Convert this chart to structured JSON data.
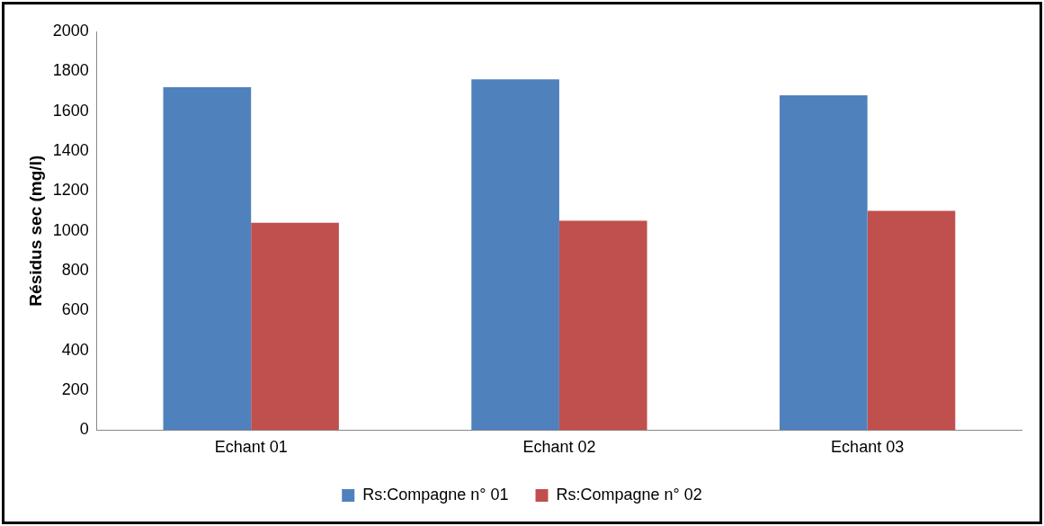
{
  "chart_data": {
    "type": "bar",
    "ylabel": "Résidus sec (mg/l)",
    "categories": [
      "Echant 01",
      "Echant 02",
      "Echant 03"
    ],
    "series": [
      {
        "name": "Rs:Compagne n° 01",
        "color": "#4f81bd",
        "values": [
          1720,
          1760,
          1680
        ]
      },
      {
        "name": "Rs:Compagne n° 02",
        "color": "#c0504d",
        "values": [
          1040,
          1050,
          1100
        ]
      }
    ],
    "ylim": [
      0,
      2000
    ],
    "yticks": [
      0,
      200,
      400,
      600,
      800,
      1000,
      1200,
      1400,
      1600,
      1800,
      2000
    ],
    "grid": false,
    "legend": "bottom"
  }
}
